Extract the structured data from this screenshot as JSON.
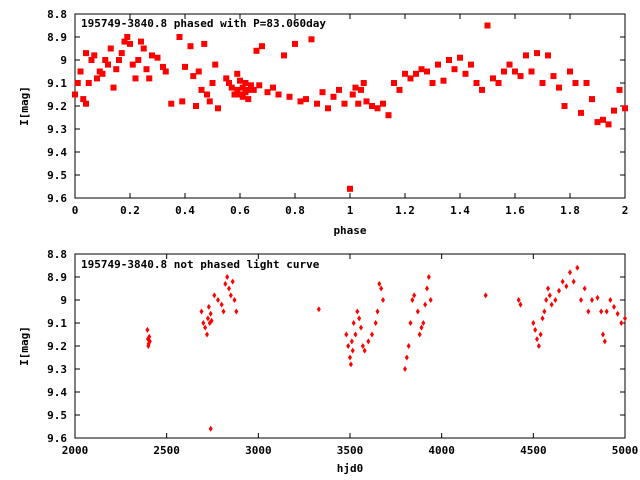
{
  "chart_data": [
    {
      "type": "scatter",
      "title": "195749-3840.8 phased with P=83.060day",
      "xlabel": "phase",
      "ylabel": "I[mag]",
      "xlim": [
        0,
        2
      ],
      "ylim": [
        8.8,
        9.6
      ],
      "y_inverted": true,
      "grid": false,
      "x_ticks": [
        "0",
        "0.2",
        "0.4",
        "0.6",
        "0.8",
        "1",
        "1.2",
        "1.4",
        "1.6",
        "1.8",
        "2"
      ],
      "y_ticks": [
        "8.8",
        "8.9",
        "9",
        "9.1",
        "9.2",
        "9.3",
        "9.4",
        "9.5",
        "9.6"
      ],
      "marker_color": "#ff0000",
      "x": [
        0.0,
        0.01,
        0.02,
        0.03,
        0.04,
        0.04,
        0.05,
        0.06,
        0.07,
        0.08,
        0.09,
        0.1,
        0.11,
        0.12,
        0.13,
        0.14,
        0.15,
        0.16,
        0.17,
        0.18,
        0.19,
        0.2,
        0.21,
        0.22,
        0.23,
        0.24,
        0.25,
        0.26,
        0.27,
        0.28,
        0.3,
        0.32,
        0.33,
        0.35,
        0.38,
        0.39,
        0.4,
        0.42,
        0.43,
        0.44,
        0.45,
        0.46,
        0.47,
        0.48,
        0.49,
        0.5,
        0.51,
        0.52,
        0.55,
        0.56,
        0.57,
        0.58,
        0.59,
        0.59,
        0.6,
        0.6,
        0.61,
        0.61,
        0.62,
        0.62,
        0.63,
        0.63,
        0.64,
        0.65,
        0.66,
        0.67,
        0.68,
        0.7,
        0.72,
        0.74,
        0.76,
        0.78,
        0.8,
        0.82,
        0.84,
        0.86,
        0.88,
        0.9,
        0.92,
        0.94,
        0.96,
        0.98,
        1.0,
        1.01,
        1.02,
        1.03,
        1.04,
        1.05,
        1.06,
        1.08,
        1.1,
        1.12,
        1.14,
        1.16,
        1.18,
        1.2,
        1.22,
        1.24,
        1.26,
        1.28,
        1.3,
        1.32,
        1.34,
        1.36,
        1.38,
        1.4,
        1.42,
        1.44,
        1.46,
        1.48,
        1.5,
        1.52,
        1.54,
        1.56,
        1.58,
        1.6,
        1.62,
        1.64,
        1.66,
        1.68,
        1.7,
        1.72,
        1.74,
        1.76,
        1.78,
        1.8,
        1.82,
        1.84,
        1.86,
        1.88,
        1.9,
        1.92,
        1.94,
        1.96,
        1.98,
        2.0
      ],
      "y": [
        9.15,
        9.1,
        9.05,
        9.17,
        9.19,
        8.97,
        9.1,
        9.0,
        8.98,
        9.08,
        9.05,
        9.06,
        9.0,
        9.02,
        8.95,
        9.12,
        9.04,
        9.0,
        8.97,
        8.92,
        8.9,
        8.93,
        9.02,
        9.08,
        9.0,
        8.92,
        8.95,
        9.04,
        9.08,
        8.98,
        8.99,
        9.03,
        9.05,
        9.19,
        8.9,
        9.18,
        9.03,
        8.94,
        9.07,
        9.2,
        9.05,
        9.13,
        8.93,
        9.15,
        9.18,
        9.1,
        9.02,
        9.21,
        9.08,
        9.1,
        9.12,
        9.15,
        9.06,
        9.13,
        9.09,
        9.15,
        9.12,
        9.16,
        9.1,
        9.14,
        9.13,
        9.17,
        9.11,
        9.13,
        8.96,
        9.11,
        8.94,
        9.14,
        9.12,
        9.15,
        8.98,
        9.16,
        8.93,
        9.18,
        9.17,
        8.91,
        9.19,
        9.14,
        9.21,
        9.16,
        9.13,
        9.19,
        9.56,
        9.15,
        9.12,
        9.19,
        9.13,
        9.1,
        9.18,
        9.2,
        9.21,
        9.19,
        9.24,
        9.1,
        9.13,
        9.06,
        9.08,
        9.06,
        9.04,
        9.05,
        9.1,
        9.02,
        9.09,
        9.0,
        9.04,
        8.99,
        9.06,
        9.02,
        9.1,
        9.13,
        8.85,
        9.08,
        9.1,
        9.05,
        9.02,
        9.05,
        9.07,
        8.98,
        9.05,
        8.97,
        9.1,
        8.98,
        9.07,
        9.12,
        9.2,
        9.05,
        9.1,
        9.23,
        9.1,
        9.17,
        9.27,
        9.26,
        9.28,
        9.22,
        9.13,
        9.21
      ]
    },
    {
      "type": "scatter",
      "title": "195749-3840.8 not phased light curve",
      "xlabel": "hjd0",
      "ylabel": "I[mag]",
      "xlim": [
        2000,
        5000
      ],
      "ylim": [
        8.8,
        9.6
      ],
      "y_inverted": true,
      "grid": false,
      "x_ticks": [
        "2000",
        "2500",
        "3000",
        "3500",
        "4000",
        "4500",
        "5000"
      ],
      "y_ticks": [
        "8.8",
        "8.9",
        "9",
        "9.1",
        "9.2",
        "9.3",
        "9.4",
        "9.5",
        "9.6"
      ],
      "marker_color": "#ff0000",
      "x": [
        2395,
        2398,
        2400,
        2402,
        2405,
        2408,
        2690,
        2700,
        2710,
        2720,
        2725,
        2730,
        2735,
        2740,
        2745,
        2760,
        2780,
        2800,
        2810,
        2820,
        2830,
        2840,
        2850,
        2860,
        2870,
        2880,
        2740,
        3330,
        3480,
        3490,
        3500,
        3505,
        3510,
        3515,
        3520,
        3530,
        3540,
        3550,
        3560,
        3570,
        3580,
        3600,
        3620,
        3640,
        3650,
        3660,
        3670,
        3680,
        3800,
        3810,
        3820,
        3830,
        3840,
        3850,
        3870,
        3880,
        3890,
        3900,
        3910,
        3920,
        3930,
        3940,
        4240,
        4420,
        4430,
        4500,
        4510,
        4520,
        4530,
        4540,
        4550,
        4560,
        4570,
        4580,
        4590,
        4600,
        4620,
        4640,
        4660,
        4680,
        4700,
        4720,
        4740,
        4760,
        4780,
        4800,
        4820,
        4850,
        4870,
        4880,
        4890,
        4900,
        4920,
        4940,
        4960,
        4980,
        5000
      ],
      "y": [
        9.13,
        9.17,
        9.2,
        9.19,
        9.16,
        9.18,
        9.05,
        9.1,
        9.12,
        9.15,
        9.08,
        9.03,
        9.1,
        9.06,
        9.09,
        8.98,
        9.0,
        9.02,
        9.05,
        8.93,
        8.9,
        8.95,
        8.98,
        8.92,
        9.0,
        9.05,
        9.56,
        9.04,
        9.15,
        9.2,
        9.25,
        9.28,
        9.18,
        9.22,
        9.1,
        9.15,
        9.05,
        9.08,
        9.12,
        9.2,
        9.22,
        9.18,
        9.15,
        9.1,
        9.05,
        8.93,
        8.95,
        9.0,
        9.3,
        9.25,
        9.2,
        9.1,
        9.0,
        8.98,
        9.05,
        9.15,
        9.12,
        9.1,
        9.02,
        8.95,
        8.9,
        9.0,
        8.98,
        9.0,
        9.02,
        9.1,
        9.13,
        9.17,
        9.2,
        9.15,
        9.08,
        9.05,
        9.0,
        8.95,
        8.98,
        9.02,
        9.0,
        8.96,
        8.92,
        8.94,
        8.88,
        8.92,
        8.86,
        9.0,
        8.95,
        9.05,
        9.0,
        8.99,
        9.05,
        9.15,
        9.18,
        9.05,
        9.0,
        9.03,
        9.06,
        9.1,
        9.08
      ]
    }
  ]
}
